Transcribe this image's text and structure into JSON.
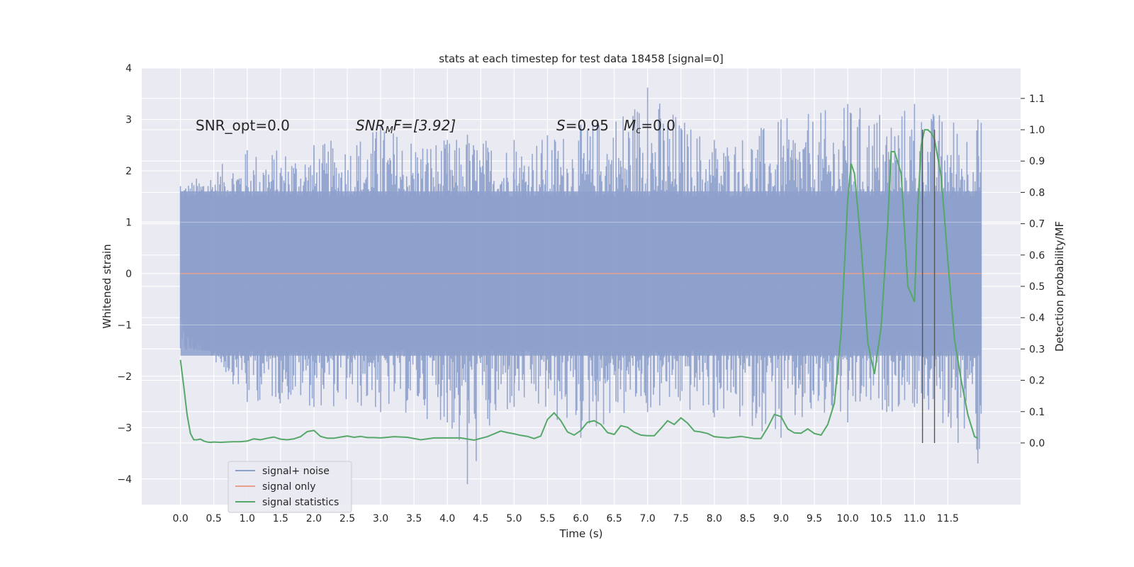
{
  "chart_data": {
    "type": "line",
    "title": "stats at each timestep for test data 18458 [signal=0]",
    "xlabel": "Time (s)",
    "ylabel": "Whitened strain",
    "ylabel_right": "Detection probability/MF",
    "xlim": [
      -0.58,
      12.59
    ],
    "ylim": [
      -4.5,
      4.0
    ],
    "ylim_right": [
      -0.197,
      1.197
    ],
    "x_ticks": [
      "0.0",
      "0.5",
      "1.0",
      "1.5",
      "2.0",
      "2.5",
      "3.0",
      "3.5",
      "4.0",
      "4.5",
      "5.0",
      "5.5",
      "6.0",
      "6.5",
      "7.0",
      "7.5",
      "8.0",
      "8.5",
      "9.0",
      "9.5",
      "10.0",
      "10.5",
      "11.0",
      "11.5"
    ],
    "y_ticks": [
      "−4",
      "−3",
      "−2",
      "−1",
      "0",
      "1",
      "2",
      "3",
      "4"
    ],
    "y_right_ticks": [
      "0.0",
      "0.1",
      "0.2",
      "0.3",
      "0.4",
      "0.5",
      "0.6",
      "0.7",
      "0.8",
      "0.9",
      "1.0",
      "1.1"
    ],
    "grid": true,
    "legend_position": "lower-left",
    "colors": {
      "background": "#eaeaf2",
      "grid": "#ffffff",
      "signal_noise": "#8da0cb",
      "signal_only": "#e8a08a",
      "statistics": "#55a868",
      "vlines": "#555555"
    },
    "annotations": {
      "snr_opt": "SNR_opt=0.0",
      "snr_mf_prefix": "SNR",
      "snr_mf_sub": "M",
      "snr_mf_suffix": "F=[3.92]",
      "s_label": "S",
      "s_value": "=0.95",
      "mc_label": "M",
      "mc_sub": "c",
      "mc_value": "=0.0"
    },
    "series": [
      {
        "name": "signal+ noise",
        "description_kind": "noise band",
        "x_range": [
          0.0,
          12.0
        ],
        "amplitude_band": [
          -1.6,
          1.6
        ],
        "peak_range": [
          -4.1,
          3.62
        ],
        "samples_x": [
          0.0,
          1.0,
          2.0,
          3.0,
          4.0,
          4.3,
          5.0,
          6.0,
          7.0,
          8.0,
          9.0,
          10.0,
          11.0,
          11.95
        ],
        "samples_high": [
          1.7,
          2.4,
          2.5,
          2.9,
          2.6,
          2.7,
          2.6,
          2.9,
          3.62,
          2.6,
          3.0,
          3.3,
          3.3,
          3.0
        ],
        "samples_low": [
          -0.9,
          -2.5,
          -2.6,
          -2.7,
          -2.9,
          -4.1,
          -2.6,
          -3.2,
          -2.7,
          -2.8,
          -3.2,
          -2.9,
          -2.6,
          -3.7
        ]
      },
      {
        "name": "signal only",
        "x": [
          0.0,
          12.0
        ],
        "y": [
          0.0,
          0.0
        ]
      },
      {
        "name": "signal statistics",
        "axis": "right",
        "x": [
          0.0,
          0.05,
          0.1,
          0.15,
          0.2,
          0.25,
          0.3,
          0.35,
          0.4,
          0.45,
          0.5,
          0.6,
          0.7,
          0.8,
          0.9,
          1.0,
          1.1,
          1.2,
          1.3,
          1.4,
          1.5,
          1.6,
          1.7,
          1.8,
          1.9,
          2.0,
          2.1,
          2.2,
          2.3,
          2.4,
          2.5,
          2.6,
          2.7,
          2.8,
          2.9,
          3.0,
          3.2,
          3.4,
          3.6,
          3.8,
          4.0,
          4.2,
          4.4,
          4.6,
          4.8,
          4.9,
          5.0,
          5.1,
          5.2,
          5.3,
          5.4,
          5.5,
          5.6,
          5.7,
          5.8,
          5.9,
          6.0,
          6.1,
          6.2,
          6.3,
          6.4,
          6.5,
          6.6,
          6.7,
          6.8,
          6.9,
          7.0,
          7.1,
          7.2,
          7.3,
          7.4,
          7.5,
          7.6,
          7.7,
          7.8,
          7.9,
          8.0,
          8.2,
          8.4,
          8.6,
          8.7,
          8.8,
          8.9,
          9.0,
          9.1,
          9.2,
          9.3,
          9.4,
          9.5,
          9.6,
          9.7,
          9.8,
          9.9,
          10.0,
          10.05,
          10.1,
          10.2,
          10.3,
          10.4,
          10.5,
          10.6,
          10.65,
          10.7,
          10.8,
          10.9,
          11.0,
          11.05,
          11.1,
          11.15,
          11.2,
          11.25,
          11.3,
          11.4,
          11.5,
          11.6,
          11.7,
          11.8,
          11.9,
          11.95
        ],
        "y": [
          0.265,
          0.18,
          0.09,
          0.03,
          0.01,
          0.01,
          0.012,
          0.006,
          0.003,
          0.002,
          0.003,
          0.002,
          0.003,
          0.004,
          0.004,
          0.006,
          0.013,
          0.01,
          0.015,
          0.019,
          0.012,
          0.01,
          0.013,
          0.02,
          0.036,
          0.04,
          0.021,
          0.015,
          0.015,
          0.019,
          0.022,
          0.018,
          0.021,
          0.017,
          0.017,
          0.016,
          0.02,
          0.018,
          0.01,
          0.016,
          0.016,
          0.016,
          0.009,
          0.02,
          0.038,
          0.033,
          0.029,
          0.024,
          0.021,
          0.014,
          0.022,
          0.075,
          0.096,
          0.071,
          0.035,
          0.025,
          0.04,
          0.066,
          0.071,
          0.059,
          0.033,
          0.027,
          0.055,
          0.05,
          0.034,
          0.025,
          0.023,
          0.023,
          0.046,
          0.071,
          0.059,
          0.08,
          0.063,
          0.038,
          0.035,
          0.03,
          0.02,
          0.016,
          0.021,
          0.014,
          0.014,
          0.049,
          0.091,
          0.084,
          0.045,
          0.032,
          0.031,
          0.045,
          0.03,
          0.025,
          0.059,
          0.128,
          0.35,
          0.778,
          0.892,
          0.86,
          0.63,
          0.32,
          0.22,
          0.37,
          0.7,
          0.93,
          0.93,
          0.86,
          0.5,
          0.45,
          0.75,
          0.95,
          1.0,
          1.0,
          0.99,
          0.97,
          0.85,
          0.58,
          0.33,
          0.2,
          0.09,
          0.02,
          0.015
        ]
      }
    ],
    "vlines": [
      11.12,
      11.3
    ]
  },
  "legend": {
    "items": [
      "signal+ noise",
      "signal only",
      "signal statistics"
    ]
  }
}
